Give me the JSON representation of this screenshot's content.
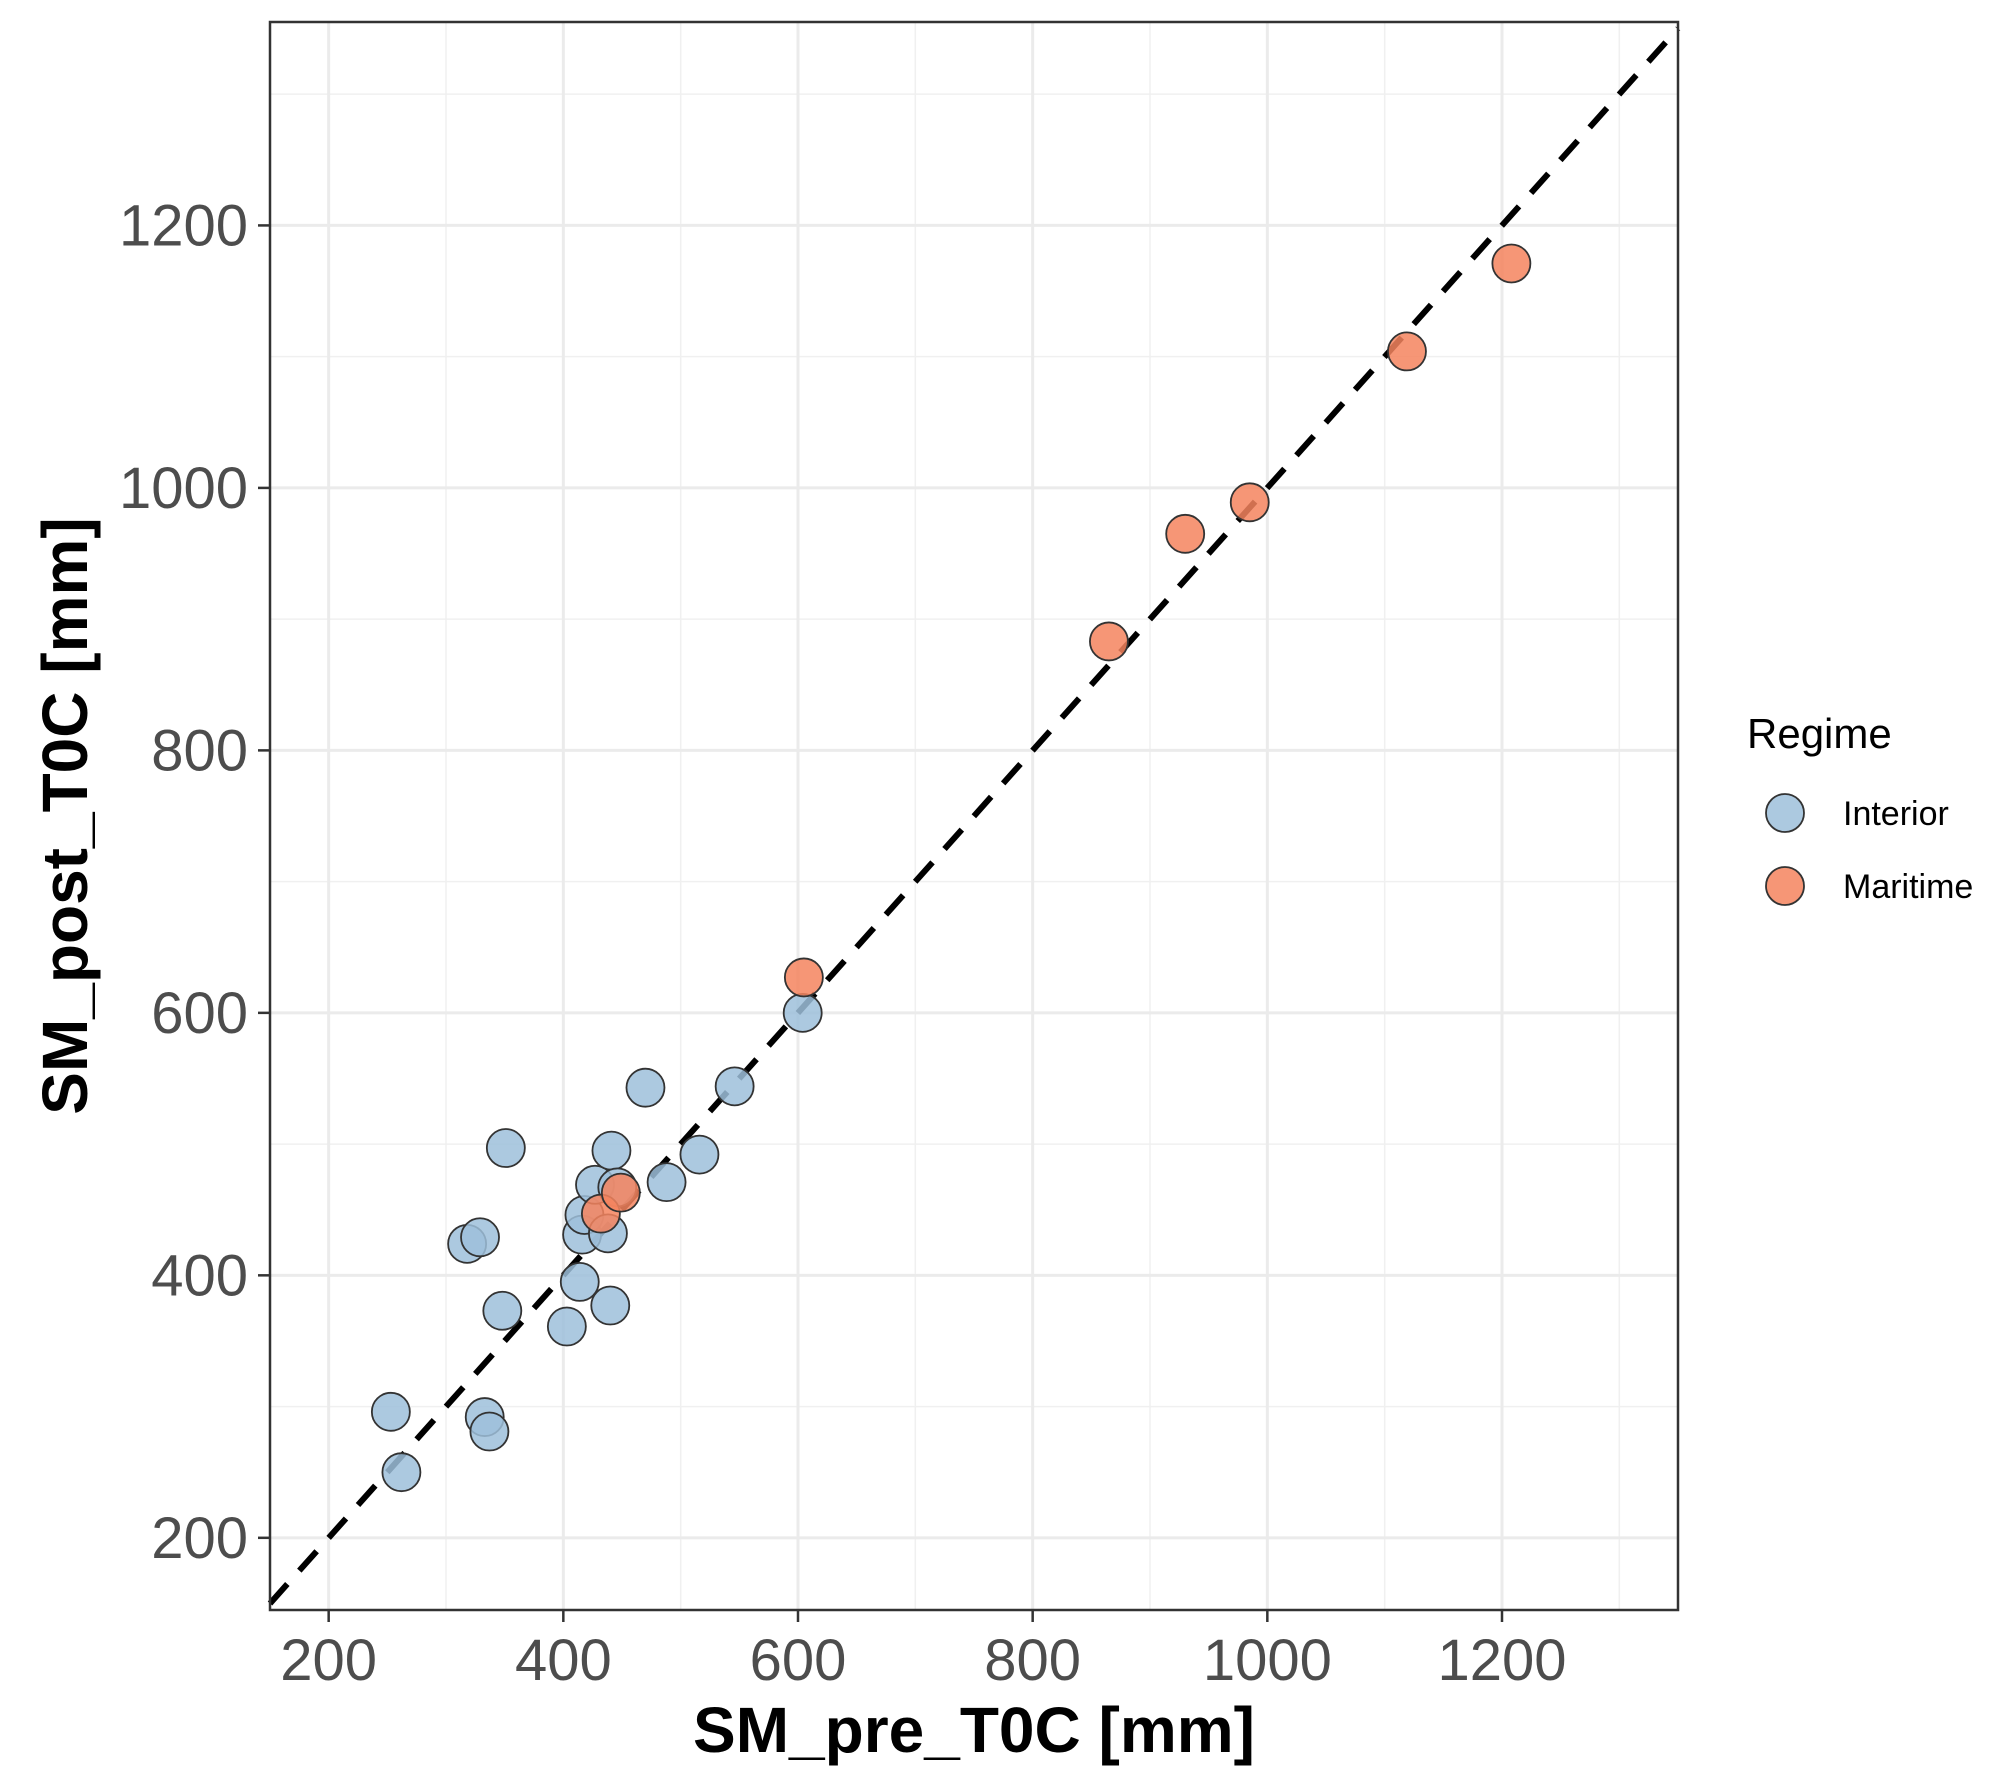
{
  "chart_data": {
    "type": "scatter",
    "title": "",
    "xlabel": "SM_pre_T0C [mm]",
    "ylabel": "SM_post_T0C [mm]",
    "xlim": [
      150,
      1350
    ],
    "ylim": [
      145,
      1355
    ],
    "x_ticks": [
      200,
      400,
      600,
      800,
      1000,
      1200
    ],
    "y_ticks": [
      200,
      400,
      600,
      800,
      1000,
      1200
    ],
    "x_tick_labels": [
      "200",
      "400",
      "600",
      "800",
      "1000",
      "1200"
    ],
    "y_tick_labels": [
      "200",
      "400",
      "600",
      "800",
      "1000",
      "1200"
    ],
    "grid": true,
    "reference_line": {
      "type": "1:1 dashed",
      "color": "#000000"
    },
    "legend": {
      "title": "Regime",
      "placement": "right"
    },
    "series": [
      {
        "name": "Interior",
        "color": "#9ebfdb",
        "points": [
          [
            253,
            296
          ],
          [
            262,
            250
          ],
          [
            333,
            292
          ],
          [
            337,
            281
          ],
          [
            318,
            424
          ],
          [
            329,
            429
          ],
          [
            348,
            373
          ],
          [
            351,
            497
          ],
          [
            403,
            361
          ],
          [
            414,
            395
          ],
          [
            416,
            431
          ],
          [
            418,
            446
          ],
          [
            427,
            469
          ],
          [
            438,
            432
          ],
          [
            440,
            377
          ],
          [
            441,
            495
          ],
          [
            446,
            467
          ],
          [
            488,
            471
          ],
          [
            516,
            492
          ],
          [
            470,
            543
          ],
          [
            546,
            544
          ],
          [
            604,
            600
          ]
        ]
      },
      {
        "name": "Maritime",
        "color": "#f4845e",
        "points": [
          [
            432,
            447
          ],
          [
            449,
            463
          ],
          [
            605,
            627
          ],
          [
            865,
            883
          ],
          [
            930,
            965
          ],
          [
            985,
            989
          ],
          [
            1119,
            1104
          ],
          [
            1208,
            1171
          ]
        ]
      }
    ]
  }
}
